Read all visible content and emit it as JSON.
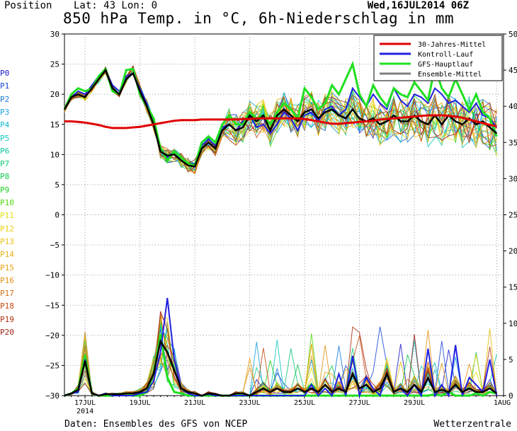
{
  "header": {
    "position": "Position",
    "lat_lon": "Lat: 43 Lon: 0",
    "date": "Wed,16JUL2014 06Z",
    "title": "850 hPa Temp. in °C, 6h-Niederschlag in mm"
  },
  "footer": {
    "source": "Daten: Ensembles des GFS von NCEP",
    "brand": "Wetterzentrale"
  },
  "members": [
    {
      "label": "P0",
      "color": "#1a1acc"
    },
    {
      "label": "P1",
      "color": "#1848d8"
    },
    {
      "label": "P2",
      "color": "#1878e0"
    },
    {
      "label": "P3",
      "color": "#18a0e0"
    },
    {
      "label": "P4",
      "color": "#10b8d0"
    },
    {
      "label": "P5",
      "color": "#10c8c0"
    },
    {
      "label": "P6",
      "color": "#10c8a0"
    },
    {
      "label": "P7",
      "color": "#10c878"
    },
    {
      "label": "P8",
      "color": "#10c850"
    },
    {
      "label": "P9",
      "color": "#20d020"
    },
    {
      "label": "P10",
      "color": "#50d810"
    },
    {
      "label": "P11",
      "color": "#e0e010"
    },
    {
      "label": "P12",
      "color": "#e8d010"
    },
    {
      "label": "P13",
      "color": "#e8c010"
    },
    {
      "label": "P14",
      "color": "#e8b010"
    },
    {
      "label": "P15",
      "color": "#e8a010"
    },
    {
      "label": "P16",
      "color": "#e09010"
    },
    {
      "label": "P17",
      "color": "#d87010"
    },
    {
      "label": "P18",
      "color": "#c84a10"
    },
    {
      "label": "P19",
      "color": "#b03010"
    },
    {
      "label": "P20",
      "color": "#982010"
    }
  ],
  "chart_data": {
    "type": "line",
    "x_start": "2014-07-16 06Z",
    "x_step_hours": 6,
    "x_tick_labels": [
      "17JUL",
      "19JUL",
      "21JUL",
      "23JUL",
      "25JUL",
      "27JUL",
      "29JUL",
      "1AUG"
    ],
    "x_year_label": "2014",
    "x_tick_steps": [
      3,
      11,
      19,
      27,
      35,
      43,
      51,
      63
    ],
    "xlim_steps": [
      0,
      64
    ],
    "left_axis": {
      "ylim": [
        -30,
        30
      ],
      "ticks": [
        30,
        25,
        20,
        15,
        10,
        5,
        0,
        -5,
        -10,
        -15,
        -20,
        -25,
        -30
      ]
    },
    "right_axis": {
      "ylim": [
        0,
        50
      ],
      "ticks": [
        50,
        45,
        40,
        35,
        30,
        25,
        20,
        15,
        10,
        5,
        0
      ]
    },
    "grid": true,
    "legend": {
      "placement": "top-right",
      "entries": [
        {
          "name": "30-Jahres-Mittel",
          "color": "#e00000"
        },
        {
          "name": "Kontroll-Lauf",
          "color": "#2020e0"
        },
        {
          "name": "GFS-Hauptlauf",
          "color": "#20e020"
        },
        {
          "name": "Ensemble-Mittel",
          "color": "#808080"
        }
      ]
    },
    "temperature_series": {
      "climatology_30yr": [
        15.5,
        15.5,
        15.4,
        15.3,
        15.1,
        14.9,
        14.6,
        14.4,
        14.4,
        14.4,
        14.5,
        14.6,
        14.8,
        15.0,
        15.2,
        15.4,
        15.6,
        15.7,
        15.7,
        15.7,
        15.8,
        15.8,
        15.8,
        15.8,
        15.8,
        15.8,
        15.9,
        15.9,
        16.0,
        16.0,
        16.0,
        16.0,
        16.0,
        16.0,
        16.0,
        15.9,
        15.7,
        15.5,
        15.3,
        15.1,
        15.1,
        15.2,
        15.3,
        15.4,
        15.5,
        15.6,
        15.8,
        15.9,
        16.0,
        16.1,
        16.2,
        16.3,
        16.4,
        16.5,
        16.5,
        16.5,
        16.4,
        16.3,
        16.1,
        15.8,
        15.5,
        15.2,
        14.9,
        14.7
      ],
      "gfs_main": [
        17.5,
        20.0,
        21.0,
        20.5,
        21.0,
        23.0,
        24.2,
        20.5,
        20.0,
        24.0,
        24.2,
        20.0,
        18.0,
        16.0,
        11.0,
        9.0,
        10.5,
        9.5,
        8.5,
        8.2,
        12.0,
        13.0,
        12.0,
        15.0,
        16.5,
        15.0,
        15.0,
        17.0,
        16.0,
        16.5,
        15.0,
        17.0,
        18.5,
        17.5,
        16.0,
        21.0,
        19.5,
        17.5,
        18.5,
        21.5,
        20.0,
        22.5,
        25.0,
        20.0,
        18.0,
        21.5,
        19.5,
        18.0,
        21.0,
        20.0,
        19.5,
        22.0,
        20.5,
        19.0,
        24.5,
        21.0,
        19.5,
        22.5,
        20.0,
        17.5,
        20.0,
        17.0,
        16.0,
        13.0
      ],
      "control": [
        17.5,
        19.5,
        20.5,
        20.0,
        21.5,
        23.0,
        24.0,
        21.5,
        20.5,
        23.0,
        23.5,
        21.0,
        18.5,
        15.5,
        10.5,
        9.5,
        10.5,
        9.0,
        8.5,
        8.5,
        11.5,
        12.5,
        11.5,
        14.5,
        15.0,
        14.0,
        15.5,
        16.5,
        14.5,
        15.0,
        13.5,
        15.0,
        17.0,
        16.0,
        14.0,
        16.5,
        17.0,
        15.5,
        17.5,
        18.0,
        16.5,
        17.5,
        21.0,
        19.5,
        18.0,
        20.0,
        18.5,
        17.5,
        21.0,
        19.0,
        18.0,
        20.0,
        19.5,
        18.5,
        21.0,
        20.0,
        18.5,
        19.0,
        18.0,
        17.0,
        18.5,
        16.5,
        16.0,
        14.5
      ],
      "ensemble_mean": [
        17.5,
        19.5,
        20.0,
        19.5,
        21.0,
        22.5,
        24.0,
        21.0,
        20.0,
        22.5,
        23.5,
        20.5,
        18.0,
        15.0,
        10.5,
        9.8,
        10.0,
        9.0,
        8.2,
        8.0,
        11.0,
        12.0,
        11.0,
        14.0,
        15.0,
        14.0,
        14.5,
        16.5,
        15.5,
        16.5,
        14.0,
        16.5,
        17.5,
        16.5,
        15.5,
        17.0,
        17.5,
        16.0,
        17.0,
        17.5,
        16.5,
        16.0,
        17.5,
        16.0,
        15.5,
        16.0,
        15.0,
        15.5,
        16.5,
        15.5,
        15.5,
        16.5,
        15.5,
        15.0,
        16.5,
        15.0,
        16.5,
        15.5,
        15.0,
        16.0,
        15.0,
        15.5,
        14.5,
        13.5
      ]
    },
    "precipitation_series_mm": {
      "gfs_main": [
        0,
        0.3,
        1.0,
        5.5,
        0.3,
        0,
        0,
        0,
        0.2,
        0.3,
        0,
        0,
        0.5,
        3.0,
        8.5,
        2.5,
        0.5,
        0.3,
        0,
        0,
        0,
        0,
        0,
        0,
        0,
        0,
        0,
        0,
        0,
        0,
        0,
        0,
        0,
        0,
        0,
        0,
        0,
        0,
        0,
        0,
        0,
        0,
        0,
        0,
        0,
        0,
        0,
        0,
        0,
        0,
        0,
        0,
        0,
        0,
        0.2,
        0,
        0.5,
        0,
        0,
        0,
        0.3,
        0,
        0.5,
        0.3
      ],
      "control": [
        0,
        0.3,
        0.5,
        5.0,
        0.3,
        0,
        0.3,
        0,
        0,
        0,
        0,
        0.3,
        0.5,
        2.0,
        6.0,
        13.5,
        5.0,
        1.0,
        0.3,
        0,
        0,
        0.2,
        0,
        0,
        0,
        0,
        0,
        0,
        0,
        0,
        0,
        0,
        0,
        0,
        0,
        0,
        1.5,
        0,
        1.0,
        0,
        3.0,
        0,
        5.5,
        0,
        2.5,
        1.0,
        0,
        3.0,
        0.5,
        1.0,
        0,
        1.5,
        0,
        6.5,
        0,
        1.5,
        0,
        7.0,
        0,
        2.5,
        1.5,
        0.5,
        5.0,
        0
      ],
      "ensemble_mean": [
        0,
        0.3,
        0.8,
        4.8,
        0.3,
        0,
        0.2,
        0.2,
        0.2,
        0.3,
        0.3,
        0.5,
        1.0,
        3.0,
        7.5,
        6.0,
        3.5,
        1.0,
        0.5,
        0.3,
        0,
        0.3,
        0.2,
        0,
        0,
        0.3,
        0.3,
        0,
        0.5,
        1.0,
        0.5,
        1.0,
        0.5,
        0.5,
        1.0,
        0.5,
        1.0,
        0.5,
        1.5,
        0.5,
        1.0,
        0.5,
        3.0,
        1.0,
        1.5,
        0.5,
        1.0,
        3.0,
        0.5,
        1.0,
        0.5,
        1.5,
        0.5,
        2.5,
        0.5,
        0.8,
        0.5,
        1.5,
        0.5,
        1.0,
        0.5,
        0.5,
        1.0,
        0.3
      ]
    }
  }
}
